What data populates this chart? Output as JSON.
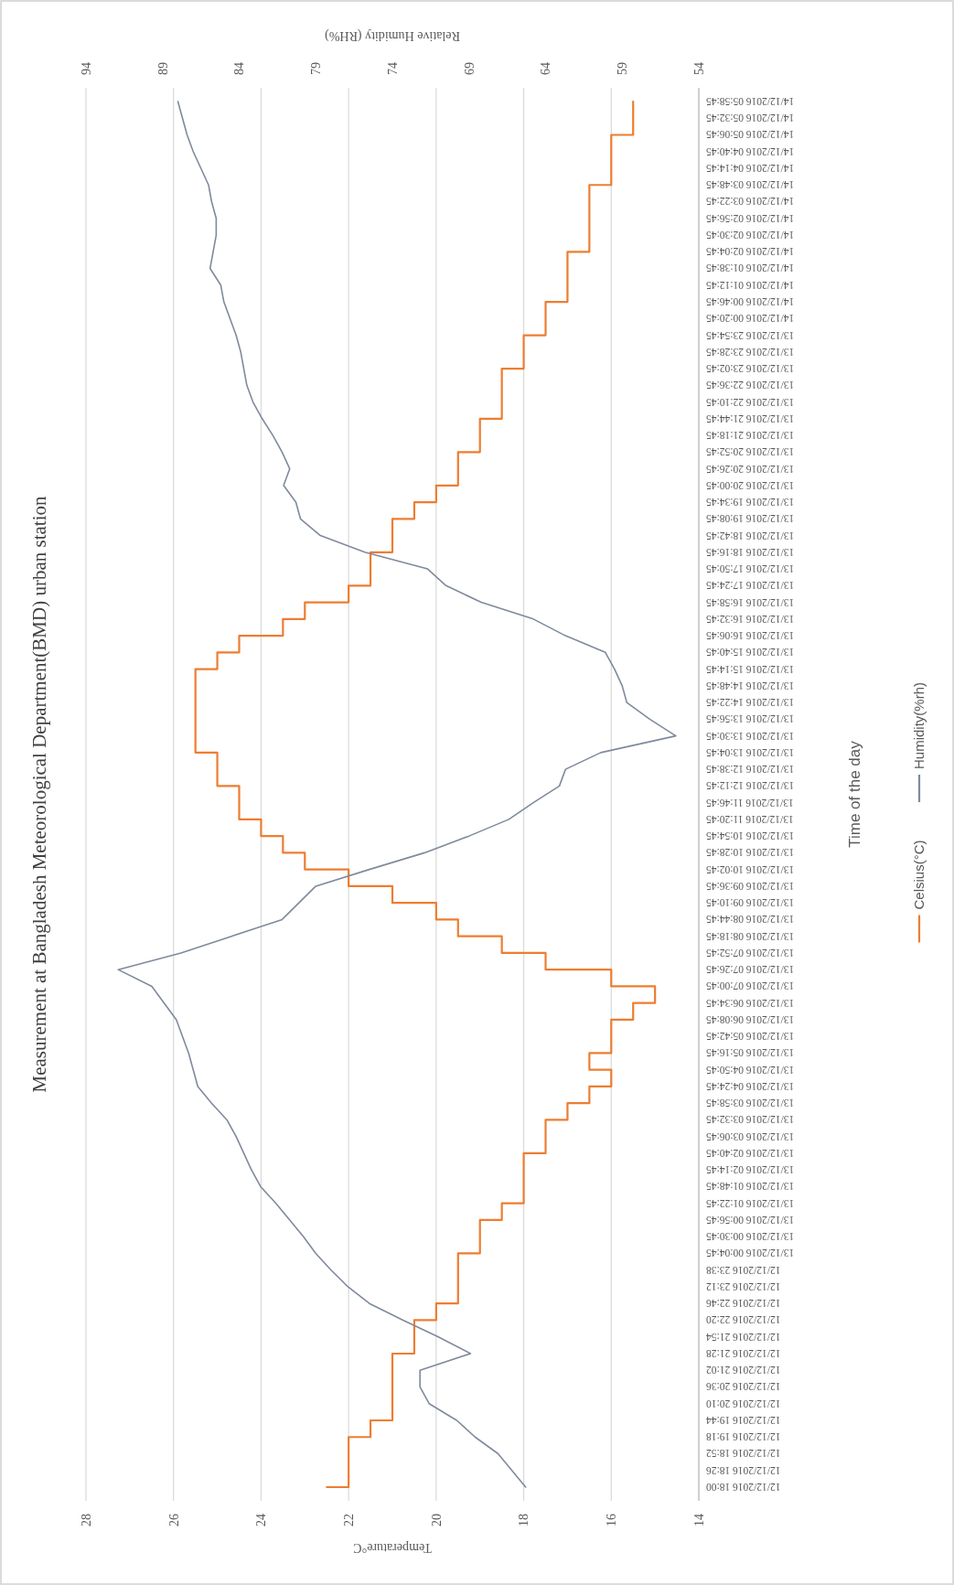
{
  "chart_data": {
    "type": "line",
    "orientation": "horizontal",
    "title": "Measurement at Bangladesh Meteorological Department(BMD)  urban station",
    "xlabel": "Temperature°C",
    "x2label": "Relative Humidity (RH%)",
    "ylabel": "Time of the day",
    "categories": [
      "14/12/2016 05:58:45",
      "14/12/2016 05:32:45",
      "14/12/2016 05:06:45",
      "14/12/2016 04:40:45",
      "14/12/2016 04:14:45",
      "14/12/2016 03:48:45",
      "14/12/2016 03:22:45",
      "14/12/2016 02:56:45",
      "14/12/2016 02:30:45",
      "14/12/2016 02:04:45",
      "14/12/2016 01:38:45",
      "14/12/2016 01:12:45",
      "14/12/2016 00:46:45",
      "14/12/2016 00:20:45",
      "13/12/2016 23:54:45",
      "13/12/2016 23:28:45",
      "13/12/2016 23:02:45",
      "13/12/2016 22:36:45",
      "13/12/2016 22:10:45",
      "13/12/2016 21:44:45",
      "13/12/2016 21:18:45",
      "13/12/2016 20:52:45",
      "13/12/2016 20:26:45",
      "13/12/2016 20:00:45",
      "13/12/2016 19:34:45",
      "13/12/2016 19:08:45",
      "13/12/2016 18:42:45",
      "13/12/2016 18:16:45",
      "13/12/2016 17:50:45",
      "13/12/2016 17:24:45",
      "13/12/2016 16:58:45",
      "13/12/2016 16:32:45",
      "13/12/2016 16:06:45",
      "13/12/2016 15:40:45",
      "13/12/2016 15:14:45",
      "13/12/2016 14:48:45",
      "13/12/2016 14:22:45",
      "13/12/2016 13:56:45",
      "13/12/2016 13:30:45",
      "13/12/2016 13:04:45",
      "13/12/2016 12:38:45",
      "13/12/2016 12:12:45",
      "13/12/2016 11:46:45",
      "13/12/2016 11:20:45",
      "13/12/2016 10:54:45",
      "13/12/2016 10:28:45",
      "13/12/2016 10:02:45",
      "13/12/2016 09:36:45",
      "13/12/2016 09:10:45",
      "13/12/2016 08:44:45",
      "13/12/2016 08:18:45",
      "13/12/2016 07:52:45",
      "13/12/2016 07:26:45",
      "13/12/2016 07:00:45",
      "13/12/2016 06:34:45",
      "13/12/2016 06:08:45",
      "13/12/2016 05:42:45",
      "13/12/2016 05:16:45",
      "13/12/2016 04:50:45",
      "13/12/2016 04:24:45",
      "13/12/2016 03:58:45",
      "13/12/2016 03:32:45",
      "13/12/2016 03:06:45",
      "13/12/2016 02:40:45",
      "13/12/2016 02:14:45",
      "13/12/2016 01:48:45",
      "13/12/2016 01:22:45",
      "13/12/2016 00:56:45",
      "13/12/2016 00:30:45",
      "13/12/2016 00:04:45",
      "12/12/2016 23:38",
      "12/12/2016 23:12",
      "12/12/2016 22:46",
      "12/12/2016 22:20",
      "12/12/2016 21:54",
      "12/12/2016 21:28",
      "12/12/2016 21:02",
      "12/12/2016 20:36",
      "12/12/2016 20:10",
      "12/12/2016 19:44",
      "12/12/2016 19:18",
      "12/12/2016 18:52",
      "12/12/2016 18:26",
      "12/12/2016 18:00"
    ],
    "series": [
      {
        "name": "Celsius(°C)",
        "type": "step",
        "color": "#ed7d31",
        "values": [
          15.5,
          15.5,
          16,
          16,
          16,
          16.5,
          16.5,
          16.5,
          16.5,
          17,
          17,
          17,
          17.5,
          17.5,
          18,
          18,
          18.5,
          18.5,
          18.5,
          19,
          19,
          19.5,
          19.5,
          20,
          20.5,
          21,
          21,
          21.5,
          21.5,
          22,
          23,
          23.5,
          24.5,
          25,
          25.5,
          25.5,
          25.5,
          25.5,
          25.5,
          25,
          25,
          24.5,
          24.5,
          24,
          23.5,
          23,
          22,
          21,
          20,
          19.5,
          18.5,
          17.5,
          16,
          15,
          15.5,
          16,
          16,
          16.5,
          16,
          16.5,
          17,
          17.5,
          17.5,
          18,
          18,
          18,
          18.5,
          19,
          19,
          19.5,
          19.5,
          19.5,
          20,
          20.5,
          20.5,
          21,
          21,
          21,
          21,
          21.5,
          22,
          22,
          22,
          22.5
        ]
      },
      {
        "name": "Humidity(%rh)",
        "type": "line",
        "axis": "x2",
        "color": "#7f8a9c",
        "values": [
          88,
          87.7,
          87.4,
          87,
          86.5,
          86,
          85.8,
          85.5,
          85.5,
          85.7,
          85.9,
          85.2,
          85,
          84.6,
          84.2,
          83.9,
          83.7,
          83.5,
          83.1,
          82.5,
          81.8,
          81.2,
          80.7,
          81.1,
          80.3,
          80,
          78.7,
          75.8,
          71.7,
          70.5,
          68.2,
          64.8,
          62.7,
          60.1,
          59.5,
          59,
          58.7,
          57.2,
          55.5,
          60.4,
          62.7,
          63.1,
          64.8,
          66.4,
          69,
          71.9,
          75.5,
          79,
          80.1,
          81.2,
          84.5,
          87.8,
          91.9,
          89.7,
          88.9,
          88.1,
          87.7,
          87.3,
          87,
          86.7,
          85.8,
          84.8,
          84.2,
          83.7,
          83.2,
          82.6,
          81.6,
          80.7,
          79.8,
          79,
          78,
          76.9,
          75.5,
          73.3,
          71,
          68.9,
          72.2,
          72.2,
          71.6,
          69.8,
          68.6,
          67.1,
          66.2,
          65.3
        ]
      }
    ],
    "xlim": [
      28,
      14
    ],
    "xticks": [
      28,
      26,
      24,
      22,
      20,
      18,
      16,
      14
    ],
    "x2lim": [
      94,
      54
    ],
    "x2ticks": [
      94,
      89,
      84,
      79,
      74,
      69,
      64,
      59,
      54
    ],
    "grid": "x",
    "legend": "right"
  }
}
